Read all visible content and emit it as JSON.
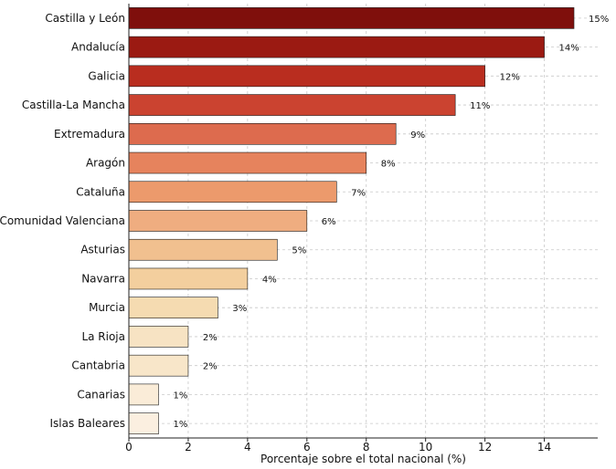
{
  "chart_data": {
    "type": "bar",
    "orientation": "horizontal",
    "title": "",
    "xlabel": "Porcentaje sobre el total nacional (%)",
    "ylabel": "",
    "xlim": [
      0,
      15.8
    ],
    "xticks": [
      0,
      2,
      4,
      6,
      8,
      10,
      12,
      14
    ],
    "grid": true,
    "categories": [
      "Castilla y León",
      "Andalucía",
      "Galicia",
      "Castilla-La Mancha",
      "Extremadura",
      "Aragón",
      "Cataluña",
      "Comunidad Valenciana",
      "Asturias",
      "Navarra",
      "Murcia",
      "La Rioja",
      "Cantabria",
      "Canarias",
      "Islas Baleares"
    ],
    "values": [
      15,
      14,
      12,
      11,
      9,
      8,
      7,
      6,
      5,
      4,
      3,
      2,
      2,
      1,
      1
    ],
    "value_labels": [
      "15%",
      "14%",
      "12%",
      "11%",
      "9%",
      "8%",
      "7%",
      "6%",
      "5%",
      "4%",
      "3%",
      "2%",
      "2%",
      "1%",
      "1%"
    ],
    "colors": [
      "#7f0f0c",
      "#9b1a12",
      "#b92d1f",
      "#cb4330",
      "#dd6b4e",
      "#e6835d",
      "#ec9a6c",
      "#efad80",
      "#f1c08f",
      "#f3cf9e",
      "#f5dbb1",
      "#f7e3c3",
      "#f8e6c9",
      "#faecd8",
      "#fbefe0"
    ]
  }
}
